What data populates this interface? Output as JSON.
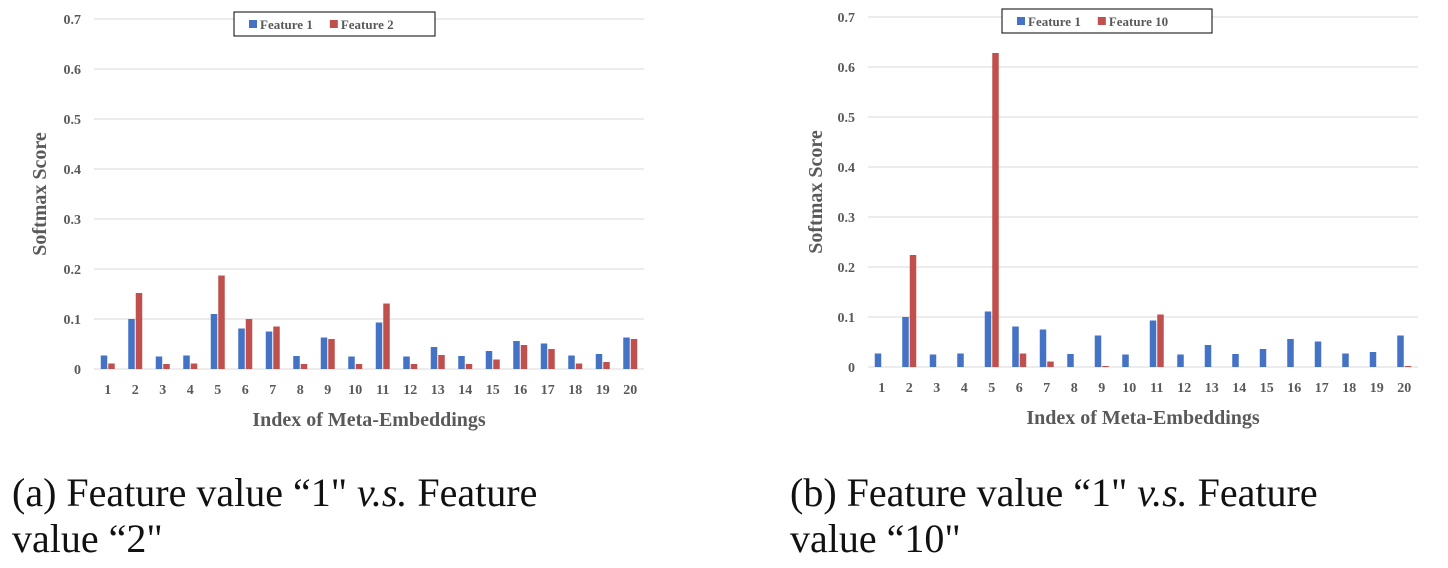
{
  "colors": {
    "series1": "#4472C4",
    "series2": "#C0504D",
    "grid": "#D9D9D9",
    "label": "#595959"
  },
  "chart_data": [
    {
      "type": "bar",
      "xlabel": "Index of Meta-Embeddings",
      "ylabel": "Softmax Score",
      "ylim": [
        0,
        0.7
      ],
      "yticks": [
        "0",
        "0.1",
        "0.2",
        "0.3",
        "0.4",
        "0.5",
        "0.6",
        "0.7"
      ],
      "grid": true,
      "legend_position": "top",
      "categories": [
        "1",
        "2",
        "3",
        "4",
        "5",
        "6",
        "7",
        "8",
        "9",
        "10",
        "11",
        "12",
        "13",
        "14",
        "15",
        "16",
        "17",
        "18",
        "19",
        "20"
      ],
      "series": [
        {
          "name": "Feature 1",
          "color": "#4472C4",
          "values": [
            0.027,
            0.1,
            0.025,
            0.027,
            0.11,
            0.081,
            0.075,
            0.026,
            0.063,
            0.025,
            0.093,
            0.025,
            0.044,
            0.026,
            0.036,
            0.056,
            0.051,
            0.027,
            0.03,
            0.063
          ]
        },
        {
          "name": "Feature 2",
          "color": "#C0504D",
          "values": [
            0.011,
            0.152,
            0.01,
            0.011,
            0.187,
            0.1,
            0.085,
            0.01,
            0.06,
            0.01,
            0.131,
            0.01,
            0.028,
            0.01,
            0.019,
            0.048,
            0.04,
            0.011,
            0.014,
            0.06
          ]
        }
      ]
    },
    {
      "type": "bar",
      "xlabel": "Index of Meta-Embeddings",
      "ylabel": "Softmax Score",
      "ylim": [
        0,
        0.7
      ],
      "yticks": [
        "0",
        "0.1",
        "0.2",
        "0.3",
        "0.4",
        "0.5",
        "0.6",
        "0.7"
      ],
      "grid": true,
      "legend_position": "top",
      "categories": [
        "1",
        "2",
        "3",
        "4",
        "5",
        "6",
        "7",
        "8",
        "9",
        "10",
        "11",
        "12",
        "13",
        "14",
        "15",
        "16",
        "17",
        "18",
        "19",
        "20"
      ],
      "series": [
        {
          "name": "Feature 1",
          "color": "#4472C4",
          "values": [
            0.027,
            0.1,
            0.025,
            0.027,
            0.111,
            0.081,
            0.075,
            0.026,
            0.063,
            0.025,
            0.093,
            0.025,
            0.044,
            0.026,
            0.036,
            0.056,
            0.051,
            0.027,
            0.03,
            0.063
          ]
        },
        {
          "name": "Feature 10",
          "color": "#C0504D",
          "values": [
            0.0,
            0.224,
            0.0,
            0.0,
            0.628,
            0.027,
            0.011,
            0.0,
            0.002,
            0.0,
            0.105,
            0.0,
            0.0,
            0.0,
            0.0,
            0.0,
            0.0,
            0.0,
            0.0,
            0.002
          ]
        }
      ]
    }
  ],
  "captions": [
    {
      "label": "(a) Feature value “1\"",
      "vs": "v.s.",
      "rest1": "Feature",
      "rest2": "value “2\""
    },
    {
      "label": "(b) Feature value “1\"",
      "vs": "v.s.",
      "rest1": "Feature",
      "rest2": "value “10\""
    }
  ]
}
